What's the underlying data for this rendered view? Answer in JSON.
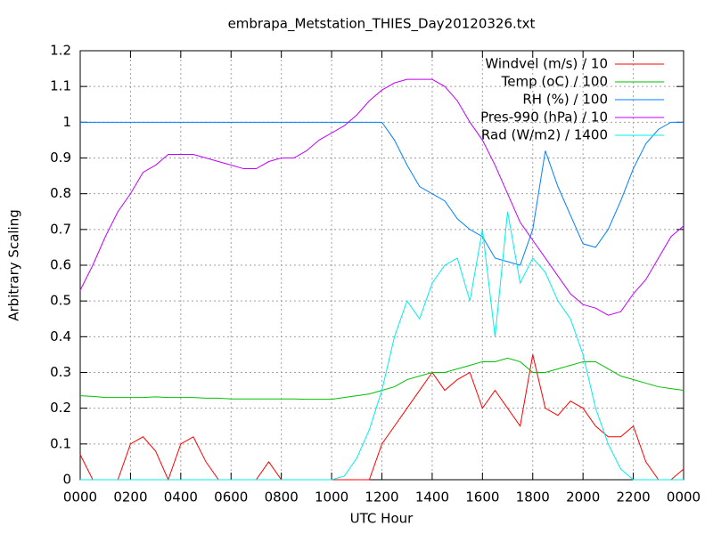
{
  "chart_data": {
    "type": "line",
    "title": "embrapa_Metstation_THIES_Day20120326.txt",
    "x_label": "UTC Hour",
    "y_label": "Arbitrary Scaling",
    "x": [
      0,
      0.5,
      1,
      1.5,
      2,
      2.5,
      3,
      3.5,
      4,
      4.5,
      5,
      5.5,
      6,
      6.5,
      7,
      7.5,
      8,
      8.5,
      9,
      9.5,
      10,
      10.5,
      11,
      11.5,
      12,
      12.5,
      13,
      13.5,
      14,
      14.5,
      15,
      15.5,
      16,
      16.5,
      17,
      17.5,
      18,
      18.5,
      19,
      19.5,
      20,
      20.5,
      21,
      21.5,
      22,
      22.5,
      23,
      23.5,
      24
    ],
    "series": [
      {
        "name": "Windvel (m/s) / 10",
        "color": "#ff0000",
        "values": [
          0.07,
          0,
          0,
          0,
          0.1,
          0.12,
          0.08,
          0,
          0.1,
          0.12,
          0.05,
          0,
          0,
          0,
          0,
          0.05,
          0,
          0,
          0,
          0,
          0,
          0,
          0,
          0,
          0.1,
          0.15,
          0.2,
          0.25,
          0.3,
          0.25,
          0.28,
          0.3,
          0.2,
          0.25,
          0.2,
          0.15,
          0.35,
          0.2,
          0.18,
          0.22,
          0.2,
          0.15,
          0.12,
          0.12,
          0.15,
          0.05,
          0,
          0,
          0.03
        ]
      },
      {
        "name": "Temp (oC) / 100",
        "color": "#00c000",
        "values": [
          0.235,
          0.233,
          0.23,
          0.23,
          0.23,
          0.23,
          0.232,
          0.23,
          0.23,
          0.23,
          0.228,
          0.228,
          0.226,
          0.226,
          0.226,
          0.226,
          0.226,
          0.226,
          0.225,
          0.225,
          0.225,
          0.23,
          0.235,
          0.24,
          0.25,
          0.26,
          0.28,
          0.29,
          0.3,
          0.3,
          0.31,
          0.32,
          0.33,
          0.33,
          0.34,
          0.33,
          0.3,
          0.3,
          0.31,
          0.32,
          0.33,
          0.33,
          0.31,
          0.29,
          0.28,
          0.27,
          0.26,
          0.255,
          0.25
        ]
      },
      {
        "name": "RH (%) / 100",
        "color": "#0080ff",
        "values": [
          1,
          1,
          1,
          1,
          1,
          1,
          1,
          1,
          1,
          1,
          1,
          1,
          1,
          1,
          1,
          1,
          1,
          1,
          1,
          1,
          1,
          1,
          1,
          1,
          1,
          0.95,
          0.88,
          0.82,
          0.8,
          0.78,
          0.73,
          0.7,
          0.68,
          0.62,
          0.61,
          0.6,
          0.7,
          0.92,
          0.82,
          0.74,
          0.66,
          0.65,
          0.7,
          0.78,
          0.87,
          0.94,
          0.98,
          1.0,
          1.0
        ]
      },
      {
        "name": "Pres-990 (hPa) / 10",
        "color": "#c000ff",
        "values": [
          0.53,
          0.6,
          0.68,
          0.75,
          0.8,
          0.86,
          0.88,
          0.91,
          0.91,
          0.91,
          0.9,
          0.89,
          0.88,
          0.87,
          0.87,
          0.89,
          0.9,
          0.9,
          0.92,
          0.95,
          0.97,
          0.99,
          1.02,
          1.06,
          1.09,
          1.11,
          1.12,
          1.12,
          1.12,
          1.1,
          1.06,
          1.0,
          0.95,
          0.88,
          0.8,
          0.72,
          0.67,
          0.62,
          0.57,
          0.52,
          0.49,
          0.48,
          0.46,
          0.47,
          0.52,
          0.56,
          0.62,
          0.68,
          0.71
        ]
      },
      {
        "name": "Rad (W/m2) / 1400",
        "color": "#00eeee",
        "values": [
          0,
          0,
          0,
          0,
          0,
          0,
          0,
          0,
          0,
          0,
          0,
          0,
          0,
          0,
          0,
          0,
          0,
          0,
          0,
          0,
          0,
          0.01,
          0.06,
          0.14,
          0.25,
          0.4,
          0.5,
          0.45,
          0.55,
          0.6,
          0.62,
          0.5,
          0.7,
          0.4,
          0.75,
          0.55,
          0.62,
          0.58,
          0.5,
          0.45,
          0.35,
          0.2,
          0.1,
          0.03,
          0,
          0,
          0,
          0,
          0
        ]
      }
    ],
    "xlim": [
      0,
      24
    ],
    "xticks": [
      {
        "value": 0,
        "label": "0000"
      },
      {
        "value": 2,
        "label": "0200"
      },
      {
        "value": 4,
        "label": "0400"
      },
      {
        "value": 6,
        "label": "0600"
      },
      {
        "value": 8,
        "label": "0800"
      },
      {
        "value": 10,
        "label": "1000"
      },
      {
        "value": 12,
        "label": "1200"
      },
      {
        "value": 14,
        "label": "1400"
      },
      {
        "value": 16,
        "label": "1600"
      },
      {
        "value": 18,
        "label": "1800"
      },
      {
        "value": 20,
        "label": "2000"
      },
      {
        "value": 22,
        "label": "2200"
      },
      {
        "value": 24,
        "label": "0000"
      }
    ],
    "ylim": [
      0,
      1.2
    ],
    "yticks": [
      0,
      0.1,
      0.2,
      0.3,
      0.4,
      0.5,
      0.6,
      0.7,
      0.8,
      0.9,
      1,
      1.1,
      1.2
    ],
    "grid": true,
    "legend": "top-right"
  }
}
